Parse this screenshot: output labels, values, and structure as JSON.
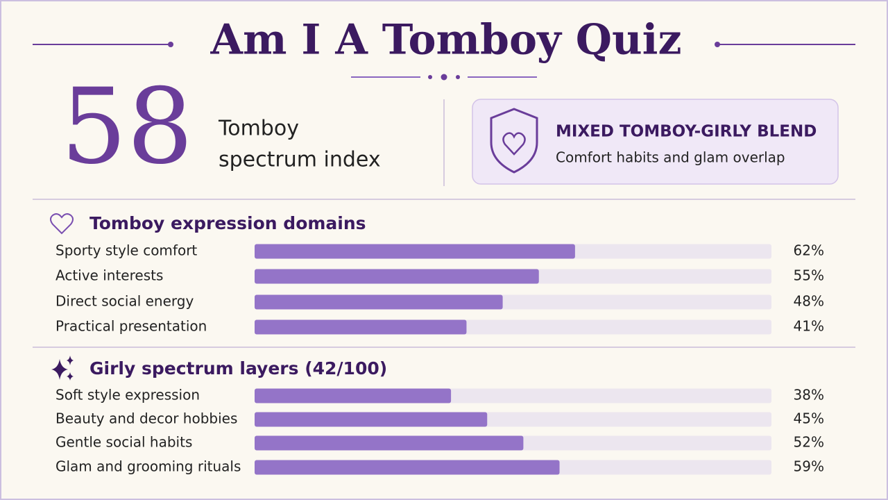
{
  "header": {
    "title": "Am I A Tomboy Quiz"
  },
  "score": {
    "value": "58",
    "caption_line1": "Tomboy",
    "caption_line2": "spectrum index"
  },
  "badge": {
    "title": "MIXED TOMBOY-GIRLY BLEND",
    "subtitle": "Comfort habits and glam overlap"
  },
  "sections": [
    {
      "heading": "Tomboy expression domains",
      "items": [
        {
          "label": "Sporty style comfort",
          "value": 62,
          "value_label": "62%"
        },
        {
          "label": "Active interests",
          "value": 55,
          "value_label": "55%"
        },
        {
          "label": "Direct social energy",
          "value": 48,
          "value_label": "48%"
        },
        {
          "label": "Practical presentation",
          "value": 41,
          "value_label": "41%"
        }
      ]
    },
    {
      "heading": "Girly spectrum layers (42/100)",
      "items": [
        {
          "label": "Soft style expression",
          "value": 38,
          "value_label": "38%"
        },
        {
          "label": "Beauty and decor hobbies",
          "value": 45,
          "value_label": "45%"
        },
        {
          "label": "Gentle social habits",
          "value": 52,
          "value_label": "52%"
        },
        {
          "label": "Glam and grooming rituals",
          "value": 59,
          "value_label": "59%"
        }
      ]
    }
  ]
}
